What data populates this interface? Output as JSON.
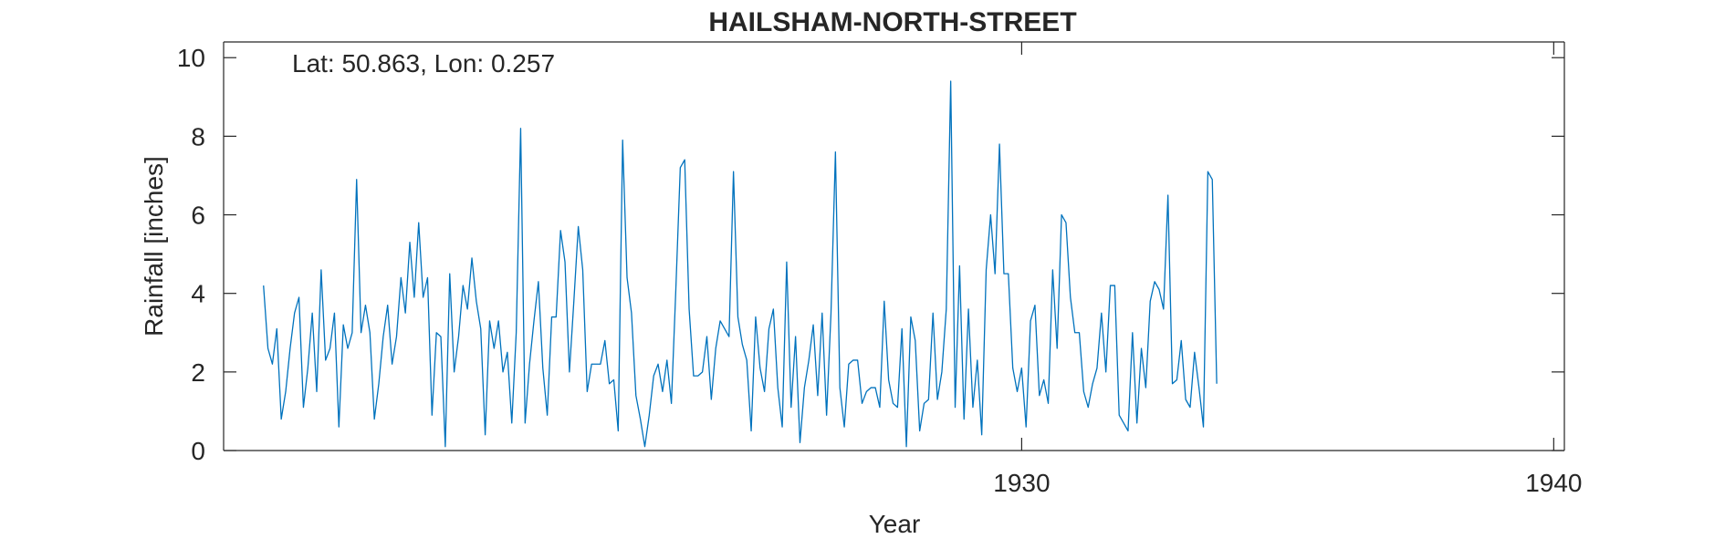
{
  "chart_data": {
    "type": "line",
    "title": "HAILSHAM-NORTH-STREET",
    "annotation": "Lat: 50.863, Lon: 0.257",
    "xlabel": "Year",
    "ylabel": "Rainfall [inches]",
    "xlim": [
      1915,
      1940.2
    ],
    "ylim": [
      0,
      10.4
    ],
    "x_ticks": [
      1930,
      1940
    ],
    "y_ticks": [
      0,
      2,
      4,
      6,
      8,
      10
    ],
    "grid": false,
    "line_color": "#0072BD",
    "x_start_year": 1915.75,
    "x_step_years": 0.08333,
    "series": [
      {
        "values": [
          4.2,
          2.6,
          2.2,
          3.1,
          0.8,
          1.5,
          2.6,
          3.5,
          3.9,
          1.1,
          2.1,
          3.5,
          1.5,
          4.6,
          2.3,
          2.6,
          3.5,
          0.6,
          3.2,
          2.6,
          3.0,
          6.9,
          3.0,
          3.7,
          3.0,
          0.8,
          1.7,
          2.9,
          3.7,
          2.2,
          2.9,
          4.4,
          3.5,
          5.3,
          3.9,
          5.8,
          3.9,
          4.4,
          0.9,
          3.0,
          2.9,
          0.1,
          4.5,
          2.0,
          2.9,
          4.2,
          3.6,
          4.9,
          3.8,
          3.1,
          0.4,
          3.3,
          2.6,
          3.3,
          2.0,
          2.5,
          0.7,
          3.0,
          8.2,
          0.7,
          2.2,
          3.3,
          4.3,
          2.1,
          0.9,
          3.4,
          3.4,
          5.6,
          4.8,
          2.0,
          3.8,
          5.7,
          4.6,
          1.5,
          2.2,
          2.2,
          2.2,
          2.8,
          1.7,
          1.8,
          0.5,
          7.9,
          4.4,
          3.5,
          1.4,
          0.8,
          0.1,
          0.9,
          1.9,
          2.2,
          1.5,
          2.3,
          1.2,
          4.1,
          7.2,
          7.4,
          3.6,
          1.9,
          1.9,
          2.0,
          2.9,
          1.3,
          2.6,
          3.3,
          3.1,
          2.9,
          7.1,
          3.4,
          2.7,
          2.3,
          0.5,
          3.4,
          2.1,
          1.5,
          3.1,
          3.6,
          1.6,
          0.6,
          4.8,
          1.1,
          2.9,
          0.2,
          1.6,
          2.3,
          3.2,
          1.4,
          3.5,
          0.9,
          3.5,
          7.6,
          1.6,
          0.6,
          2.2,
          2.3,
          2.3,
          1.2,
          1.5,
          1.6,
          1.6,
          1.1,
          3.8,
          1.8,
          1.2,
          1.1,
          3.1,
          0.1,
          3.4,
          2.8,
          0.5,
          1.2,
          1.3,
          3.5,
          1.3,
          2.0,
          3.6,
          9.4,
          1.1,
          4.7,
          0.8,
          3.6,
          1.1,
          2.3,
          0.4,
          4.6,
          6.0,
          4.5,
          7.8,
          4.5,
          4.5,
          2.1,
          1.5,
          2.1,
          0.6,
          3.3,
          3.7,
          1.4,
          1.8,
          1.2,
          4.6,
          2.6,
          6.0,
          5.8,
          3.9,
          3.0,
          3.0,
          1.5,
          1.1,
          1.7,
          2.1,
          3.5,
          2.0,
          4.2,
          4.2,
          0.9,
          0.7,
          0.5,
          3.0,
          0.7,
          2.6,
          1.6,
          3.8,
          4.3,
          4.1,
          3.6,
          6.5,
          1.7,
          1.8,
          2.8,
          1.3,
          1.1,
          2.5,
          1.6,
          0.6,
          7.1,
          6.9,
          1.7
        ]
      }
    ]
  }
}
